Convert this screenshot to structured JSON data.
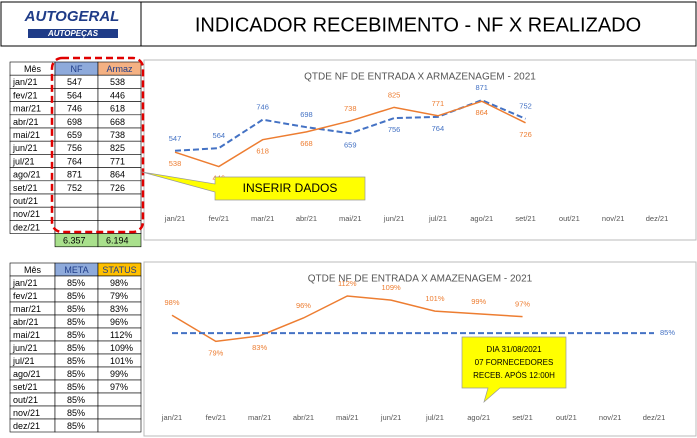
{
  "header": {
    "logo": "AUTOGERAL",
    "logo_sub": "AUTOPEÇAS",
    "title": "INDICADOR RECEBIMENTO -  NF X REALIZADO"
  },
  "table1": {
    "header": [
      "Mês",
      "NF",
      "Armaz"
    ],
    "rows": [
      [
        "jan/21",
        547,
        538
      ],
      [
        "fev/21",
        564,
        446
      ],
      [
        "mar/21",
        746,
        618
      ],
      [
        "abr/21",
        698,
        668
      ],
      [
        "mai/21",
        659,
        738
      ],
      [
        "jun/21",
        756,
        825
      ],
      [
        "jul/21",
        764,
        771
      ],
      [
        "ago/21",
        871,
        864
      ],
      [
        "set/21",
        752,
        726
      ],
      [
        "out/21"
      ],
      [
        "nov/21"
      ],
      [
        "dez/21"
      ]
    ],
    "totals": [
      "6.357",
      "6.194"
    ]
  },
  "table2": {
    "header": [
      "Mês",
      "META",
      "STATUS"
    ],
    "rows": [
      [
        "jan/21",
        "85%",
        "98%"
      ],
      [
        "fev/21",
        "85%",
        "79%"
      ],
      [
        "mar/21",
        "85%",
        "83%"
      ],
      [
        "abr/21",
        "85%",
        "96%"
      ],
      [
        "mai/21",
        "85%",
        "112%"
      ],
      [
        "jun/21",
        "85%",
        "109%"
      ],
      [
        "jul/21",
        "85%",
        "101%"
      ],
      [
        "ago/21",
        "85%",
        "99%"
      ],
      [
        "set/21",
        "85%",
        "97%"
      ],
      [
        "out/21",
        "85%"
      ],
      [
        "nov/21",
        "85%"
      ],
      [
        "dez/21",
        "85%"
      ]
    ]
  },
  "callouts": [
    "INSERIR DADOS",
    "DIA 31/08/2021",
    "07 FORNECEDORES",
    "RECEB. APÓS 12:00H"
  ],
  "chart_data": [
    {
      "type": "line",
      "title": "QTDE NF DE ENTRADA X ARMAZENAGEM - 2021",
      "categories": [
        "jan/21",
        "fev/21",
        "mar/21",
        "abr/21",
        "mai/21",
        "jun/21",
        "jul/21",
        "ago/21",
        "set/21",
        "out/21",
        "nov/21",
        "dez/21"
      ],
      "series": [
        {
          "color": "#4472c4",
          "dashed": true,
          "values": [
            547,
            564,
            746,
            698,
            659,
            756,
            764,
            871,
            752,
            null,
            null,
            null
          ]
        },
        {
          "color": "#ed7d31",
          "dashed": false,
          "values": [
            538,
            446,
            618,
            668,
            738,
            825,
            771,
            864,
            726,
            null,
            null,
            null
          ]
        }
      ],
      "ylim": [
        200,
        1000
      ],
      "grid": false
    },
    {
      "type": "line",
      "title": "QTDE NF DE ENTRADA X AMAZENAGEM - 2021",
      "categories": [
        "jan/21",
        "fev/21",
        "mar/21",
        "abr/21",
        "mai/21",
        "jun/21",
        "jul/21",
        "ago/21",
        "set/21",
        "out/21",
        "nov/21",
        "dez/21"
      ],
      "series": [
        {
          "color": "#ed7d31",
          "dashed": false,
          "values": [
            98,
            79,
            83,
            96,
            112,
            109,
            101,
            99,
            97,
            null,
            null,
            null
          ],
          "value_labels": [
            "98%",
            "79%",
            "83%",
            "96%",
            "112%",
            "109%",
            "101%",
            "99%",
            "97%",
            null,
            null,
            null
          ]
        },
        {
          "color": "#4472c4",
          "dashed": true,
          "values": [
            85,
            85,
            85,
            85,
            85,
            85,
            85,
            85,
            85,
            85,
            85,
            85
          ],
          "value_labels": [
            null,
            null,
            null,
            null,
            null,
            null,
            null,
            null,
            null,
            null,
            null,
            "85%"
          ]
        }
      ],
      "ylim": [
        40,
        120
      ],
      "grid": false
    }
  ]
}
